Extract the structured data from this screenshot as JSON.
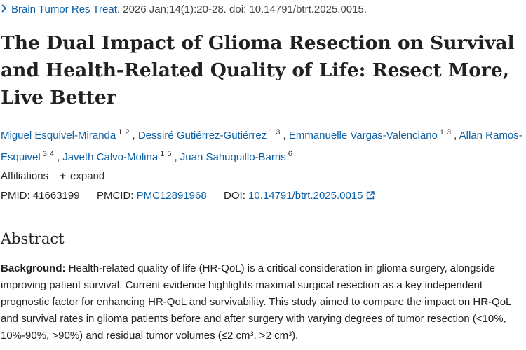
{
  "citation": {
    "journal": "Brain Tumor Res Treat.",
    "details": "2026 Jan;14(1):20-28. doi: 10.14791/btrt.2025.0015."
  },
  "title": "The Dual Impact of Glioma Resection on Survival and Health-Related Quality of Life: Resect More, Live Better",
  "authors": [
    {
      "name": "Miguel Esquivel-Miranda",
      "sups": [
        "1",
        "2"
      ]
    },
    {
      "name": "Dessiré Gutiérrez-Gutiérrez",
      "sups": [
        "1",
        "3"
      ]
    },
    {
      "name": "Emmanuelle Vargas-Valenciano",
      "sups": [
        "1",
        "3"
      ]
    },
    {
      "name": "Allan Ramos-Esquivel",
      "sups": [
        "3",
        "4"
      ]
    },
    {
      "name": "Javeth Calvo-Molina",
      "sups": [
        "1",
        "5"
      ]
    },
    {
      "name": "Juan Sahuquillo-Barris",
      "sups": [
        "6"
      ]
    }
  ],
  "affiliations": {
    "label": "Affiliations",
    "expand": "expand"
  },
  "ids": {
    "pmid_label": "PMID:",
    "pmid": "41663199",
    "pmcid_label": "PMCID:",
    "pmcid": "PMC12891968",
    "doi_label": "DOI:",
    "doi": "10.14791/btrt.2025.0015"
  },
  "abstract": {
    "heading": "Abstract",
    "background_label": "Background:",
    "background_text": "Health-related quality of life (HR-QoL) is a critical consideration in glioma surgery, alongside improving patient survival. Current evidence highlights maximal surgical resection as a key independent prognostic factor for enhancing HR-QoL and survivability. This study aimed to compare the impact on HR-QoL and survival rates in glioma patients before and after surgery with varying degrees of tumor resection (<10%, 10%-90%, >90%) and residual tumor volumes (≤2 cm³, >2 cm³)."
  },
  "colors": {
    "link": "#0b5fa5",
    "text": "#212121"
  }
}
